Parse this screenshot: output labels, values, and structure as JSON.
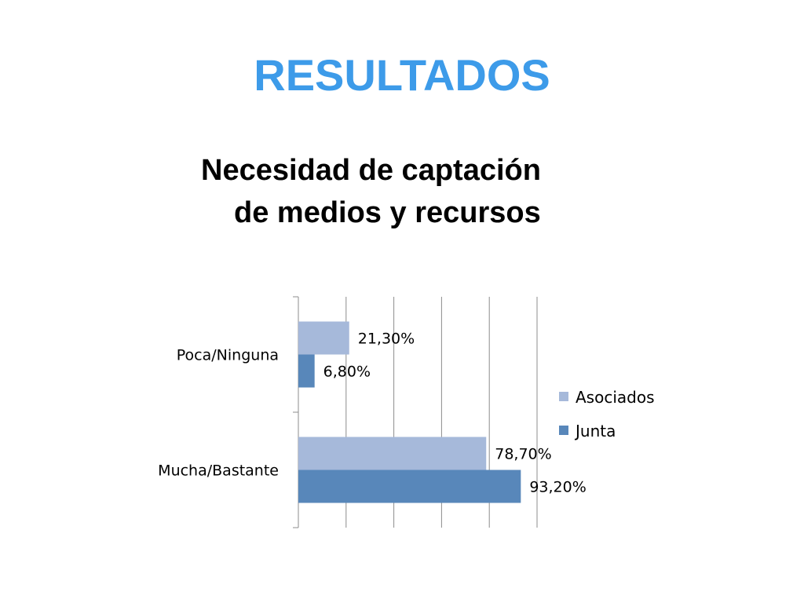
{
  "slide": {
    "title": "RESULTADOS",
    "subtitle_line1": "Necesidad de captación",
    "subtitle_line2": "de medios y recursos"
  },
  "chart_data": {
    "type": "bar",
    "orientation": "horizontal",
    "categories": [
      "Poca/Ninguna",
      "Mucha/Bastante"
    ],
    "series": [
      {
        "name": "Asociados",
        "values": [
          21.3,
          78.7
        ],
        "labels": [
          "21,30%",
          "78,70%"
        ],
        "color": "#a6b9da"
      },
      {
        "name": "Junta",
        "values": [
          6.8,
          93.2
        ],
        "labels": [
          "6,80%",
          "93,20%"
        ],
        "color": "#5887ba"
      }
    ],
    "xlim": [
      0,
      100
    ],
    "x_gridlines": [
      0,
      20,
      40,
      60,
      80,
      100
    ],
    "grid": true,
    "legend": "right",
    "title": "",
    "xlabel": "",
    "ylabel": ""
  }
}
